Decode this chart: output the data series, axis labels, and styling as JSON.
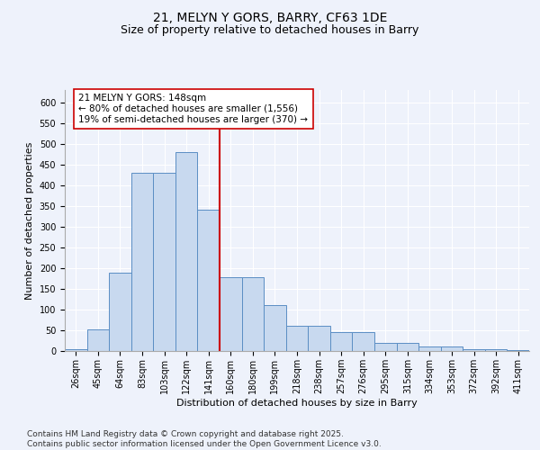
{
  "title": "21, MELYN Y GORS, BARRY, CF63 1DE",
  "subtitle": "Size of property relative to detached houses in Barry",
  "xlabel": "Distribution of detached houses by size in Barry",
  "ylabel": "Number of detached properties",
  "categories": [
    "26sqm",
    "45sqm",
    "64sqm",
    "83sqm",
    "103sqm",
    "122sqm",
    "141sqm",
    "160sqm",
    "180sqm",
    "199sqm",
    "218sqm",
    "238sqm",
    "257sqm",
    "276sqm",
    "295sqm",
    "315sqm",
    "334sqm",
    "353sqm",
    "372sqm",
    "392sqm",
    "411sqm"
  ],
  "bar_values": [
    5,
    52,
    190,
    430,
    430,
    480,
    340,
    178,
    178,
    110,
    60,
    60,
    45,
    45,
    20,
    20,
    10,
    10,
    5,
    5,
    3
  ],
  "bar_color": "#c8d9ef",
  "bar_edge_color": "#5b8ec4",
  "vline_color": "#cc0000",
  "annotation_text": "21 MELYN Y GORS: 148sqm\n← 80% of detached houses are smaller (1,556)\n19% of semi-detached houses are larger (370) →",
  "annotation_box_color": "white",
  "annotation_box_edge_color": "#cc0000",
  "ylim": [
    0,
    630
  ],
  "yticks": [
    0,
    50,
    100,
    150,
    200,
    250,
    300,
    350,
    400,
    450,
    500,
    550,
    600
  ],
  "bg_color": "#eef2fb",
  "footer_text": "Contains HM Land Registry data © Crown copyright and database right 2025.\nContains public sector information licensed under the Open Government Licence v3.0.",
  "title_fontsize": 10,
  "subtitle_fontsize": 9,
  "axis_label_fontsize": 8,
  "tick_fontsize": 7,
  "footer_fontsize": 6.5,
  "annot_fontsize": 7.5
}
